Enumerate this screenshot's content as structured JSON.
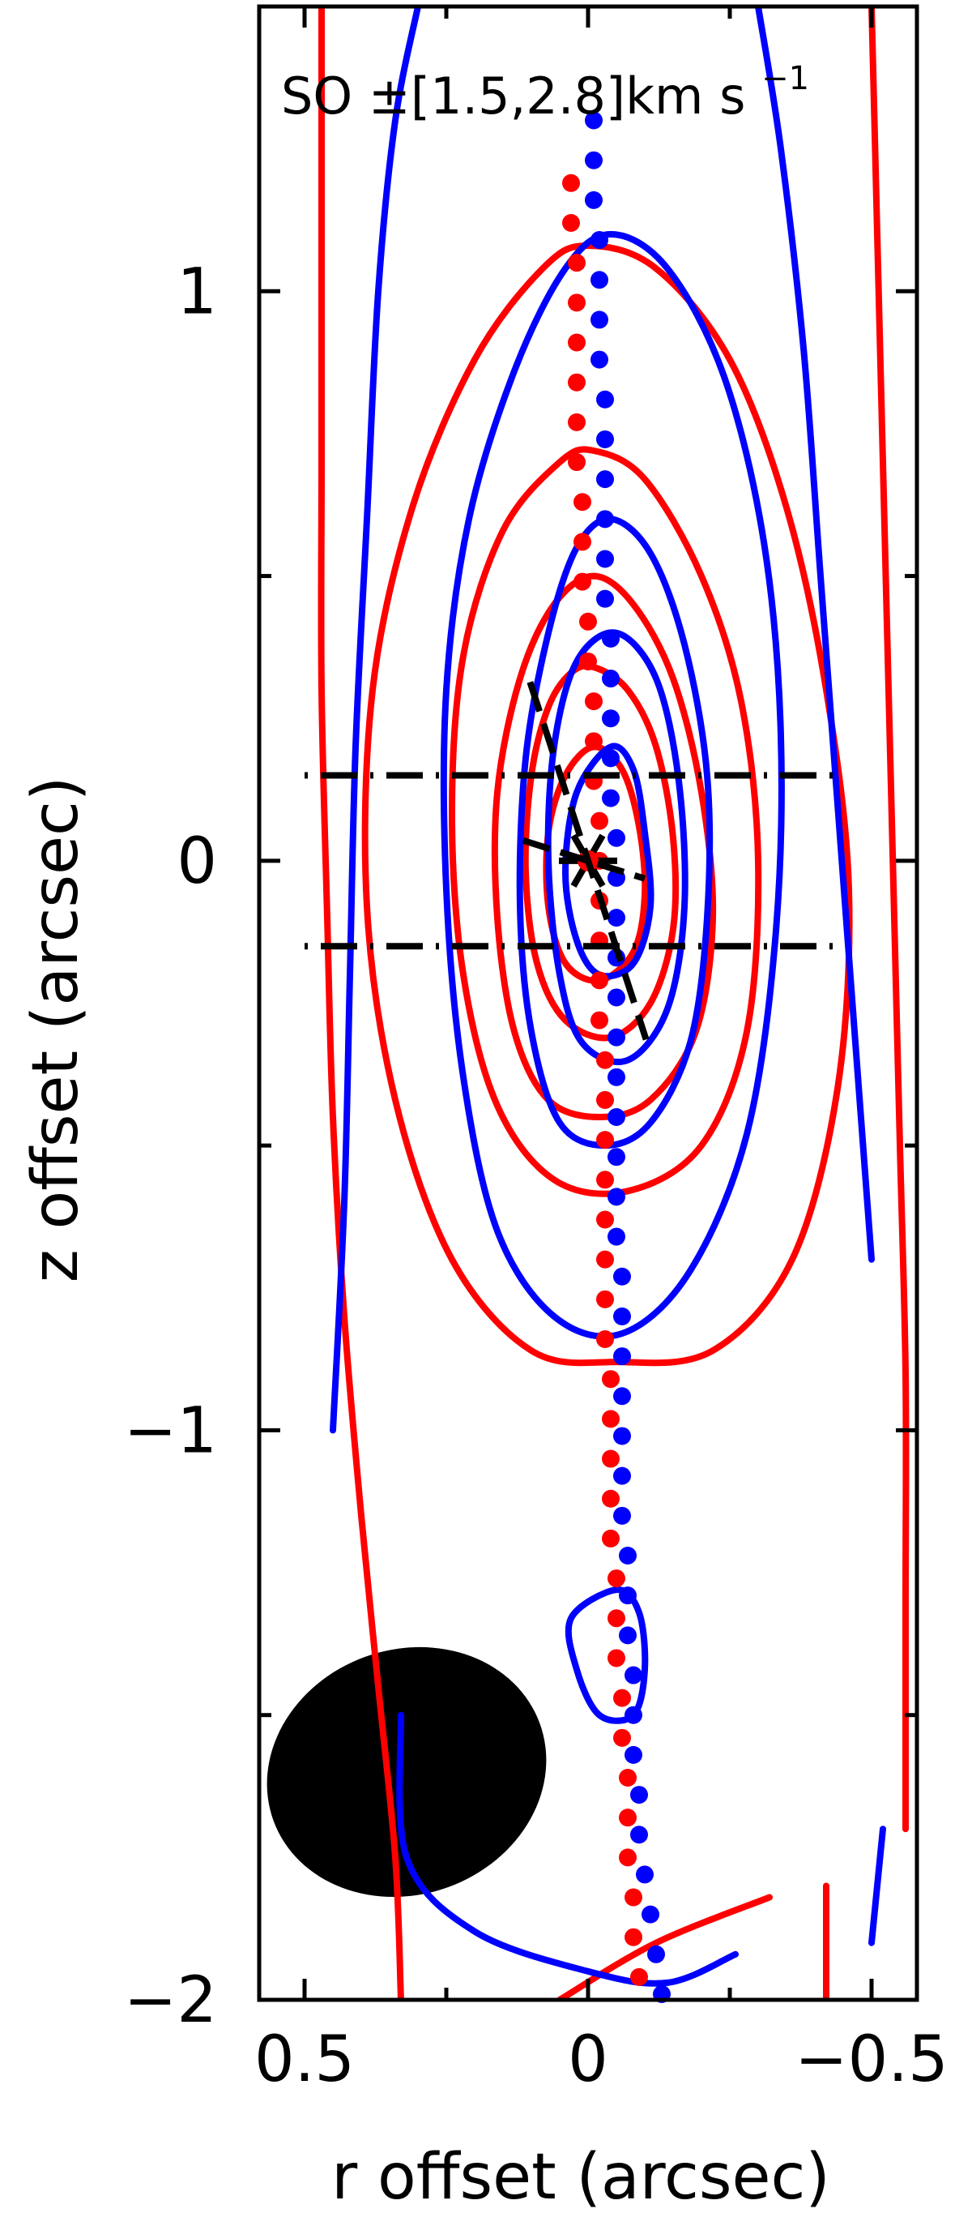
{
  "chart_data": {
    "type": "contour",
    "title": "SO ±[1.5,2.8]km s",
    "title_superscript": "−1",
    "xlabel": "r offset (arcsec)",
    "ylabel": "z offset (arcsec)",
    "xlim": [
      0.58,
      -0.58
    ],
    "ylim": [
      -2.0,
      1.5
    ],
    "x_axis_reversed": true,
    "x_ticks": [
      {
        "value": 0.5,
        "label": "0.5"
      },
      {
        "value": 0.0,
        "label": "0"
      },
      {
        "value": -0.5,
        "label": "−0.5"
      }
    ],
    "x_minor_ticks": [
      0.25,
      -0.25
    ],
    "y_ticks": [
      {
        "value": 1.0,
        "label": "1"
      },
      {
        "value": 0.0,
        "label": "0"
      },
      {
        "value": -1.0,
        "label": "−1"
      },
      {
        "value": -2.0,
        "label": "−2"
      }
    ],
    "y_minor_ticks": [
      0.5,
      -0.5,
      -1.5
    ],
    "series": [
      {
        "color": "#ff0000",
        "contours": [
          {
            "closed": true,
            "points": [
              [
                0,
                1.08
              ],
              [
                -0.12,
                1.04
              ],
              [
                -0.25,
                0.88
              ],
              [
                -0.35,
                0.62
              ],
              [
                -0.42,
                0.3
              ],
              [
                -0.46,
                -0.05
              ],
              [
                -0.44,
                -0.4
              ],
              [
                -0.36,
                -0.7
              ],
              [
                -0.22,
                -0.86
              ],
              [
                -0.05,
                -0.88
              ],
              [
                0.1,
                -0.86
              ],
              [
                0.24,
                -0.7
              ],
              [
                0.34,
                -0.42
              ],
              [
                0.39,
                -0.08
              ],
              [
                0.38,
                0.3
              ],
              [
                0.31,
                0.62
              ],
              [
                0.2,
                0.88
              ],
              [
                0.08,
                1.04
              ]
            ]
          },
          {
            "closed": true,
            "points": [
              [
                -0.01,
                0.72
              ],
              [
                -0.1,
                0.67
              ],
              [
                -0.2,
                0.5
              ],
              [
                -0.27,
                0.28
              ],
              [
                -0.3,
                0.0
              ],
              [
                -0.28,
                -0.3
              ],
              [
                -0.2,
                -0.5
              ],
              [
                -0.07,
                -0.58
              ],
              [
                0.06,
                -0.56
              ],
              [
                0.16,
                -0.43
              ],
              [
                0.22,
                -0.2
              ],
              [
                0.24,
                0.08
              ],
              [
                0.22,
                0.36
              ],
              [
                0.15,
                0.58
              ],
              [
                0.05,
                0.7
              ]
            ]
          },
          {
            "closed": true,
            "points": [
              [
                -0.01,
                0.5
              ],
              [
                -0.08,
                0.45
              ],
              [
                -0.15,
                0.32
              ],
              [
                -0.2,
                0.12
              ],
              [
                -0.22,
                -0.1
              ],
              [
                -0.19,
                -0.3
              ],
              [
                -0.11,
                -0.42
              ],
              [
                -0.02,
                -0.45
              ],
              [
                0.07,
                -0.42
              ],
              [
                0.13,
                -0.3
              ],
              [
                0.16,
                -0.1
              ],
              [
                0.16,
                0.12
              ],
              [
                0.12,
                0.32
              ],
              [
                0.06,
                0.45
              ]
            ]
          },
          {
            "closed": true,
            "points": [
              [
                -0.01,
                0.34
              ],
              [
                -0.07,
                0.3
              ],
              [
                -0.12,
                0.2
              ],
              [
                -0.15,
                0.04
              ],
              [
                -0.15,
                -0.12
              ],
              [
                -0.11,
                -0.25
              ],
              [
                -0.04,
                -0.31
              ],
              [
                0.04,
                -0.28
              ],
              [
                0.09,
                -0.18
              ],
              [
                0.11,
                -0.02
              ],
              [
                0.1,
                0.15
              ],
              [
                0.07,
                0.27
              ],
              [
                0.03,
                0.33
              ]
            ]
          },
          {
            "closed": true,
            "points": [
              [
                -0.01,
                0.2
              ],
              [
                -0.06,
                0.16
              ],
              [
                -0.09,
                0.06
              ],
              [
                -0.1,
                -0.06
              ],
              [
                -0.08,
                -0.16
              ],
              [
                -0.02,
                -0.21
              ],
              [
                0.04,
                -0.18
              ],
              [
                0.07,
                -0.08
              ],
              [
                0.07,
                0.05
              ],
              [
                0.04,
                0.15
              ]
            ]
          },
          {
            "closed": false,
            "points": [
              [
                0.33,
                -2.0
              ],
              [
                0.34,
                -1.75
              ],
              [
                0.37,
                -1.45
              ],
              [
                0.4,
                -1.15
              ],
              [
                0.43,
                -0.8
              ],
              [
                0.45,
                -0.45
              ],
              [
                0.46,
                -0.1
              ],
              [
                0.47,
                0.3
              ],
              [
                0.47,
                0.7
              ],
              [
                0.47,
                1.1
              ],
              [
                0.47,
                1.5
              ]
            ]
          },
          {
            "closed": false,
            "points": [
              [
                -0.56,
                -1.7
              ],
              [
                -0.56,
                -1.3
              ],
              [
                -0.56,
                -0.9
              ],
              [
                -0.55,
                -0.5
              ],
              [
                -0.54,
                -0.1
              ],
              [
                -0.53,
                0.3
              ],
              [
                -0.52,
                0.7
              ],
              [
                -0.51,
                1.1
              ],
              [
                -0.5,
                1.5
              ]
            ]
          },
          {
            "closed": false,
            "points": [
              [
                0.05,
                -2.0
              ],
              [
                -0.12,
                -1.9
              ],
              [
                -0.32,
                -1.82
              ]
            ]
          },
          {
            "closed": false,
            "points": [
              [
                -0.42,
                -2.0
              ],
              [
                -0.42,
                -1.8
              ]
            ]
          }
        ]
      },
      {
        "color": "#0000ff",
        "contours": [
          {
            "closed": true,
            "points": [
              [
                -0.04,
                1.1
              ],
              [
                -0.14,
                1.04
              ],
              [
                -0.24,
                0.85
              ],
              [
                -0.31,
                0.56
              ],
              [
                -0.34,
                0.22
              ],
              [
                -0.33,
                -0.14
              ],
              [
                -0.28,
                -0.48
              ],
              [
                -0.18,
                -0.72
              ],
              [
                -0.06,
                -0.83
              ],
              [
                0.06,
                -0.8
              ],
              [
                0.16,
                -0.65
              ],
              [
                0.22,
                -0.38
              ],
              [
                0.25,
                -0.05
              ],
              [
                0.25,
                0.3
              ],
              [
                0.21,
                0.6
              ],
              [
                0.13,
                0.86
              ],
              [
                0.04,
                1.04
              ]
            ]
          },
          {
            "closed": true,
            "points": [
              [
                -0.04,
                0.6
              ],
              [
                -0.11,
                0.54
              ],
              [
                -0.17,
                0.38
              ],
              [
                -0.21,
                0.15
              ],
              [
                -0.21,
                -0.1
              ],
              [
                -0.18,
                -0.32
              ],
              [
                -0.11,
                -0.46
              ],
              [
                -0.03,
                -0.5
              ],
              [
                0.05,
                -0.46
              ],
              [
                0.1,
                -0.3
              ],
              [
                0.12,
                -0.08
              ],
              [
                0.11,
                0.18
              ],
              [
                0.07,
                0.4
              ],
              [
                0.02,
                0.55
              ]
            ]
          },
          {
            "closed": true,
            "points": [
              [
                -0.05,
                0.4
              ],
              [
                -0.12,
                0.32
              ],
              [
                -0.16,
                0.14
              ],
              [
                -0.17,
                -0.08
              ],
              [
                -0.14,
                -0.26
              ],
              [
                -0.07,
                -0.35
              ],
              [
                0.01,
                -0.32
              ],
              [
                0.05,
                -0.2
              ],
              [
                0.07,
                0.0
              ],
              [
                0.06,
                0.2
              ],
              [
                0.02,
                0.35
              ]
            ]
          },
          {
            "closed": true,
            "points": [
              [
                -0.04,
                0.2
              ],
              [
                -0.08,
                0.16
              ],
              [
                -0.1,
                0.05
              ],
              [
                -0.11,
                -0.08
              ],
              [
                -0.08,
                -0.18
              ],
              [
                -0.02,
                -0.2
              ],
              [
                0.02,
                -0.14
              ],
              [
                0.04,
                -0.02
              ],
              [
                0.02,
                0.12
              ]
            ]
          },
          {
            "closed": true,
            "points": [
              [
                -0.05,
                -1.28
              ],
              [
                -0.09,
                -1.32
              ],
              [
                -0.1,
                -1.42
              ],
              [
                -0.08,
                -1.5
              ],
              [
                -0.02,
                -1.5
              ],
              [
                0.02,
                -1.42
              ],
              [
                0.03,
                -1.33
              ]
            ]
          },
          {
            "closed": false,
            "points": [
              [
                0.45,
                -1.0
              ],
              [
                0.43,
                -0.6
              ],
              [
                0.42,
                -0.2
              ],
              [
                0.41,
                0.2
              ],
              [
                0.39,
                0.6
              ],
              [
                0.37,
                1.0
              ],
              [
                0.34,
                1.3
              ],
              [
                0.3,
                1.5
              ]
            ]
          },
          {
            "closed": false,
            "points": [
              [
                -0.5,
                -0.7
              ],
              [
                -0.47,
                -0.3
              ],
              [
                -0.44,
                0.1
              ],
              [
                -0.41,
                0.5
              ],
              [
                -0.38,
                0.9
              ],
              [
                -0.34,
                1.25
              ],
              [
                -0.3,
                1.5
              ]
            ]
          },
          {
            "closed": false,
            "points": [
              [
                0.33,
                -1.5
              ],
              [
                0.32,
                -1.75
              ],
              [
                0.2,
                -1.88
              ],
              [
                0.0,
                -1.95
              ],
              [
                -0.14,
                -1.97
              ],
              [
                -0.26,
                -1.92
              ]
            ]
          },
          {
            "closed": false,
            "points": [
              [
                -0.52,
                -1.7
              ],
              [
                -0.5,
                -1.9
              ]
            ]
          }
        ]
      }
    ],
    "ridge_red": {
      "x": [
        0.03,
        0.03,
        0.02,
        0.02,
        0.02,
        0.02,
        0.02,
        0.02,
        0.01,
        0.01,
        0.01,
        0.0,
        0.0,
        -0.01,
        -0.01,
        -0.01,
        -0.02,
        -0.02,
        -0.02,
        -0.02,
        -0.02,
        -0.02,
        -0.03,
        -0.03,
        -0.03,
        -0.03,
        -0.03,
        -0.03,
        -0.03,
        -0.03,
        -0.04,
        -0.04,
        -0.04,
        -0.04,
        -0.04,
        -0.05,
        -0.05,
        -0.05,
        -0.06,
        -0.06,
        -0.07,
        -0.07,
        -0.07,
        -0.08,
        -0.08,
        -0.09
      ],
      "y_start": 1.19,
      "y_step": -0.07
    },
    "ridge_blue": {
      "x": [
        -0.01,
        -0.01,
        -0.01,
        -0.02,
        -0.02,
        -0.02,
        -0.02,
        -0.03,
        -0.03,
        -0.03,
        -0.03,
        -0.03,
        -0.03,
        -0.04,
        -0.04,
        -0.04,
        -0.04,
        -0.04,
        -0.05,
        -0.05,
        -0.05,
        -0.05,
        -0.05,
        -0.05,
        -0.05,
        -0.05,
        -0.05,
        -0.05,
        -0.05,
        -0.06,
        -0.06,
        -0.06,
        -0.06,
        -0.06,
        -0.06,
        -0.06,
        -0.07,
        -0.07,
        -0.07,
        -0.08,
        -0.08,
        -0.08,
        -0.09,
        -0.09,
        -0.1,
        -0.11,
        -0.12,
        -0.13,
        -0.16,
        -0.2
      ],
      "y_start": 1.3,
      "y_step": -0.07
    },
    "slice_lines_z": [
      0.15,
      -0.15
    ],
    "beam": {
      "x": 0.32,
      "y": -1.6,
      "major": 0.43,
      "minor": 0.25,
      "pa_deg": -20,
      "color": "#000000"
    },
    "star_marker": {
      "x": 0.0,
      "y": 0.0
    },
    "jet_dashes": {
      "angle_deg": 18,
      "half_len": 0.33
    }
  }
}
